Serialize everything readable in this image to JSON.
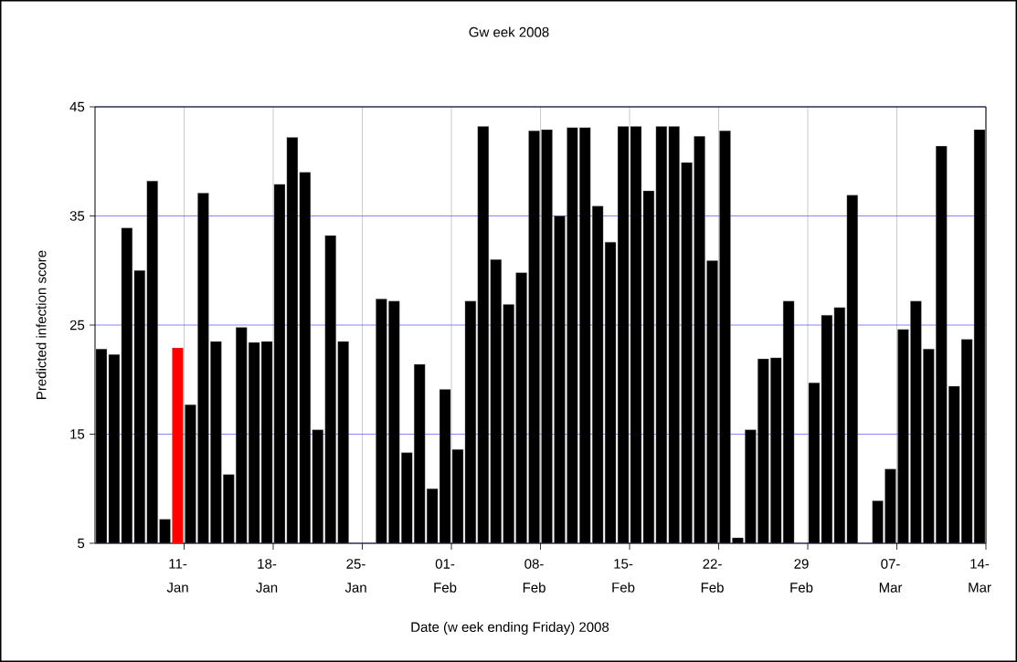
{
  "chart_data": {
    "type": "bar",
    "title": "Gw eek 2008",
    "xlabel": "Date (w eek ending Friday) 2008",
    "ylabel": "Predicted infection score",
    "categories": [
      null,
      null,
      null,
      null,
      null,
      null,
      "11-Jan",
      null,
      null,
      null,
      null,
      null,
      null,
      "18-Jan",
      null,
      null,
      null,
      null,
      null,
      null,
      "25-Jan",
      null,
      null,
      null,
      null,
      null,
      null,
      "01-Feb",
      null,
      null,
      null,
      null,
      null,
      null,
      "08-Feb",
      null,
      null,
      null,
      null,
      null,
      null,
      "15-Feb",
      null,
      null,
      null,
      null,
      null,
      null,
      "22-Feb",
      null,
      null,
      null,
      null,
      null,
      null,
      "29 Feb",
      null,
      null,
      null,
      null,
      null,
      null,
      "07-Mar",
      null,
      null,
      null,
      null,
      null,
      null,
      "14-Mar"
    ],
    "values": [
      22.8,
      22.3,
      33.9,
      30.0,
      38.2,
      7.2,
      22.9,
      17.7,
      37.1,
      23.5,
      11.3,
      24.8,
      23.4,
      23.5,
      37.9,
      42.2,
      39.0,
      15.4,
      33.2,
      23.5,
      null,
      null,
      27.4,
      27.2,
      13.3,
      21.4,
      10.0,
      19.1,
      13.6,
      27.2,
      43.2,
      31.0,
      26.9,
      29.8,
      42.8,
      42.9,
      35.0,
      43.1,
      43.1,
      35.9,
      32.6,
      43.2,
      43.2,
      37.3,
      43.2,
      43.2,
      39.9,
      42.3,
      30.9,
      42.8,
      5.5,
      15.4,
      21.9,
      22.0,
      27.2,
      null,
      19.7,
      25.9,
      26.6,
      36.9,
      null,
      8.9,
      11.8,
      24.6,
      27.2,
      22.8,
      41.4,
      19.4,
      23.7,
      42.9
    ],
    "colors": [
      "#000000",
      "#000000",
      "#000000",
      "#000000",
      "#000000",
      "#000000",
      "#ff0000",
      "#000000",
      "#000000",
      "#000000",
      "#000000",
      "#000000",
      "#000000",
      "#000000",
      "#000000",
      "#000000",
      "#000000",
      "#000000",
      "#000000",
      "#000000",
      "#000000",
      "#000000",
      "#000000",
      "#000000",
      "#000000",
      "#000000",
      "#000000",
      "#000000",
      "#000000",
      "#000000",
      "#000000",
      "#000000",
      "#000000",
      "#000000",
      "#000000",
      "#000000",
      "#000000",
      "#000000",
      "#000000",
      "#000000",
      "#000000",
      "#000000",
      "#000000",
      "#000000",
      "#000000",
      "#000000",
      "#000000",
      "#000000",
      "#000000",
      "#000000",
      "#000000",
      "#000000",
      "#000000",
      "#000000",
      "#000000",
      "#000000",
      "#000000",
      "#000000",
      "#000000",
      "#000000",
      "#000000",
      "#000000",
      "#000000",
      "#000000",
      "#000000",
      "#000000",
      "#000000",
      "#000000",
      "#000000",
      "#000000"
    ],
    "ylim": [
      5,
      45
    ],
    "yticks": [
      5,
      15,
      25,
      35,
      45
    ],
    "grid": true
  }
}
